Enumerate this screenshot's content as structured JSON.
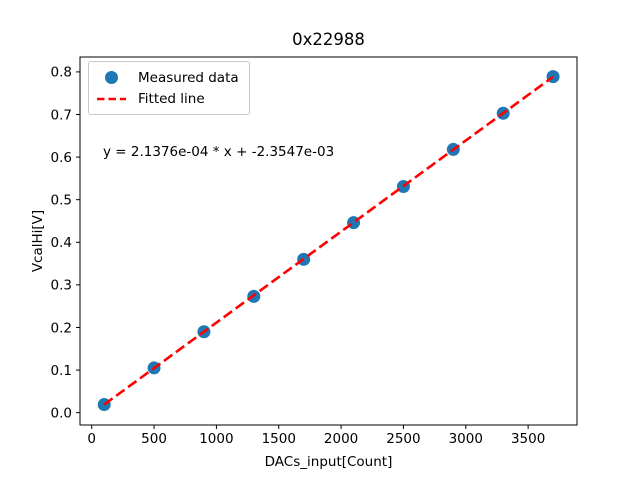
{
  "chart_data": {
    "type": "scatter",
    "title": "0x22988",
    "xlabel": "DACs_input[Count]",
    "ylabel": "VcalHi[V]",
    "annotation": "y = 2.1376e-04 * x + -2.3547e-03",
    "grid": false,
    "legend_position": "upper left",
    "xlim": [
      -94,
      3892
    ],
    "ylim": [
      -0.029,
      0.835
    ],
    "xticks": [
      0,
      500,
      1000,
      1500,
      2000,
      2500,
      3000,
      3500
    ],
    "xtick_labels": [
      "0",
      "500",
      "1000",
      "1500",
      "2000",
      "2500",
      "3000",
      "3500"
    ],
    "yticks": [
      0.0,
      0.1,
      0.2,
      0.3,
      0.4,
      0.5,
      0.6,
      0.7,
      0.8
    ],
    "ytick_labels": [
      "0.0",
      "0.1",
      "0.2",
      "0.3",
      "0.4",
      "0.5",
      "0.6",
      "0.7",
      "0.8"
    ],
    "series": [
      {
        "name": "Measured data",
        "type": "scatter",
        "color": "#1f77b4",
        "x": [
          100,
          500,
          900,
          1300,
          1700,
          2100,
          2500,
          2900,
          3300,
          3700
        ],
        "y": [
          0.019,
          0.105,
          0.19,
          0.273,
          0.36,
          0.446,
          0.531,
          0.618,
          0.703,
          0.789
        ]
      },
      {
        "name": "Fitted line",
        "type": "line",
        "style": "dashed",
        "color": "#ff0000",
        "slope": 0.00021376,
        "intercept": -0.0023547,
        "x": [
          100,
          3700
        ],
        "y": [
          0.0190213,
          0.7885573
        ]
      }
    ],
    "colors": {
      "scatter": "#1f77b4",
      "fit_line": "#ff0000",
      "axes": "#000000",
      "background": "#ffffff"
    }
  }
}
